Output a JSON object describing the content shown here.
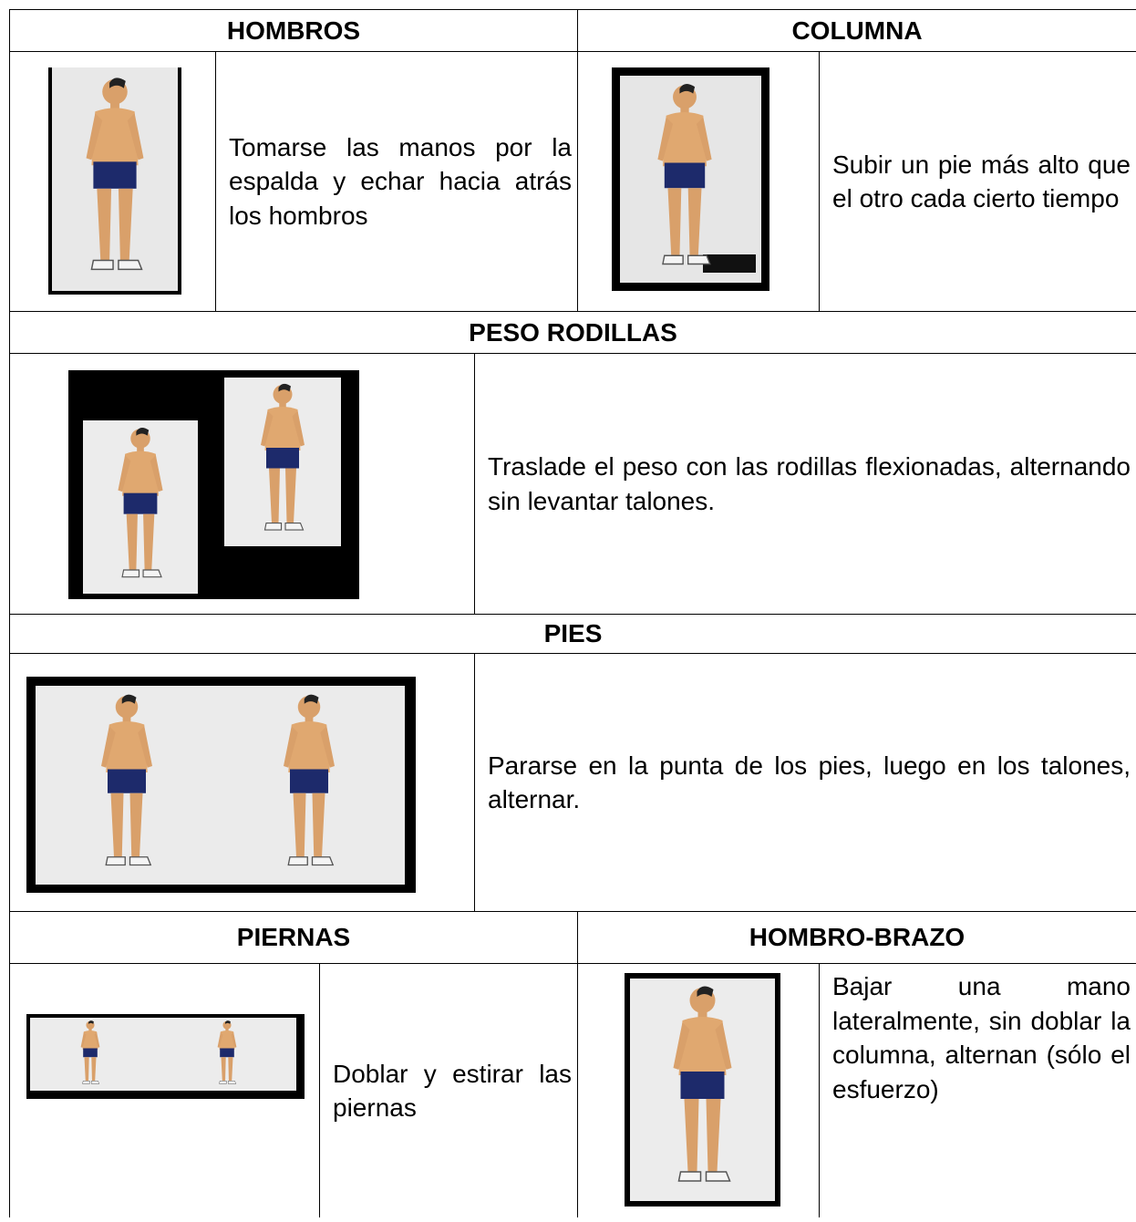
{
  "sections": [
    {
      "title": "HOMBROS",
      "text": "Tomarse las manos por la espalda y echar hacia atrás los hombros"
    },
    {
      "title": "COLUMNA",
      "text": "Subir un pie más alto que el otro cada cierto tiempo"
    },
    {
      "title": "PESO RODILLAS",
      "text": "Traslade el peso con las rodillas flexionadas, alternando sin levantar talones."
    },
    {
      "title": "PIES",
      "text": "Pararse en la punta de los pies, luego en los talones, alternar."
    },
    {
      "title": "PIERNAS",
      "text": "Doblar y estirar las piernas"
    },
    {
      "title": "HOMBRO-BRAZO",
      "text": "Bajar una mano lateralmente, sin doblar la columna, alternan (sólo el esfuerzo)"
    }
  ]
}
